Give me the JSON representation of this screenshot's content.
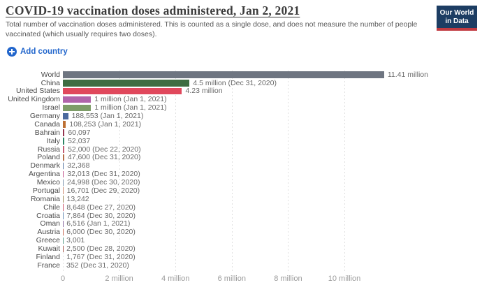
{
  "header": {
    "title": "COVID-19 vaccination doses administered, Jan 2, 2021",
    "subtitle": "Total number of vaccination doses administered. This is counted as a single dose, and does not measure the number of people vaccinated (which usually requires two doses).",
    "add_country_label": "Add country",
    "logo": {
      "line1": "Our World",
      "line2": "in Data"
    }
  },
  "colors": {
    "accent_blue": "#2266cc",
    "logo_navy": "#1d3d63",
    "logo_red": "#c13a41",
    "gridline": "#e0e0e0"
  },
  "chart_data": {
    "type": "bar",
    "orientation": "horizontal",
    "title": "COVID-19 vaccination doses administered, Jan 2, 2021",
    "xlabel": "",
    "ylabel": "",
    "xlim": [
      0,
      11410000
    ],
    "grid": "vertical-dashed",
    "x_axis": {
      "tick_labels": [
        "0",
        "2 million",
        "4 million",
        "6 million",
        "8 million",
        "10 million"
      ],
      "tick_values": [
        0,
        2000000,
        4000000,
        6000000,
        8000000,
        10000000
      ]
    },
    "bars": [
      {
        "country": "World",
        "value": 11410000,
        "label": "11.41 million",
        "color": "#6e7581"
      },
      {
        "country": "China",
        "value": 4500000,
        "label": "4.5 million (Dec 31, 2020)",
        "color": "#3e6c41"
      },
      {
        "country": "United States",
        "value": 4230000,
        "label": "4.23 million",
        "color": "#e0485c"
      },
      {
        "country": "United Kingdom",
        "value": 1000000,
        "label": "1 million (Jan 1, 2021)",
        "color": "#b164aa"
      },
      {
        "country": "Israel",
        "value": 1000000,
        "label": "1 million (Jan 1, 2021)",
        "color": "#7e9d68"
      },
      {
        "country": "Germany",
        "value": 188553,
        "label": "188,553 (Jan 1, 2021)",
        "color": "#4c6a9e"
      },
      {
        "country": "Canada",
        "value": 108253,
        "label": "108,253 (Jan 1, 2021)",
        "color": "#bd7033"
      },
      {
        "country": "Bahrain",
        "value": 60097,
        "label": "60,097",
        "color": "#95344e"
      },
      {
        "country": "Italy",
        "value": 52037,
        "label": "52,037",
        "color": "#2d8465"
      },
      {
        "country": "Russia",
        "value": 52000,
        "label": "52,000 (Dec 22, 2020)",
        "color": "#c45b74"
      },
      {
        "country": "Poland",
        "value": 47600,
        "label": "47,600 (Dec 31, 2020)",
        "color": "#b56f49"
      },
      {
        "country": "Denmark",
        "value": 32368,
        "label": "32,368",
        "color": "#5878a3"
      },
      {
        "country": "Argentina",
        "value": 32013,
        "label": "32,013 (Dec 31, 2020)",
        "color": "#c2548e"
      },
      {
        "country": "Mexico",
        "value": 24998,
        "label": "24,998 (Dec 30, 2020)",
        "color": "#7f95ae"
      },
      {
        "country": "Portugal",
        "value": 16701,
        "label": "16,701 (Dec 29, 2020)",
        "color": "#cf8a70"
      },
      {
        "country": "Romania",
        "value": 13242,
        "label": "13,242",
        "color": "#9c8a5a"
      },
      {
        "country": "Chile",
        "value": 8648,
        "label": "8,648 (Dec 27, 2020)",
        "color": "#d0576f"
      },
      {
        "country": "Croatia",
        "value": 7864,
        "label": "7,864 (Dec 30, 2020)",
        "color": "#6a8fb7"
      },
      {
        "country": "Oman",
        "value": 6516,
        "label": "6,516 (Jan 1, 2021)",
        "color": "#8a6aa0"
      },
      {
        "country": "Austria",
        "value": 6000,
        "label": "6,000 (Dec 30, 2020)",
        "color": "#c76b56"
      },
      {
        "country": "Greece",
        "value": 3001,
        "label": "3,001",
        "color": "#5a9e8a"
      },
      {
        "country": "Kuwait",
        "value": 2500,
        "label": "2,500 (Dec 28, 2020)",
        "color": "#a8574e"
      },
      {
        "country": "Finland",
        "value": 1767,
        "label": "1,767 (Dec 31, 2020)",
        "color": "#5f7fa8"
      },
      {
        "country": "France",
        "value": 352,
        "label": "352 (Dec 31, 2020)",
        "color": "#6b7f9a"
      }
    ]
  }
}
